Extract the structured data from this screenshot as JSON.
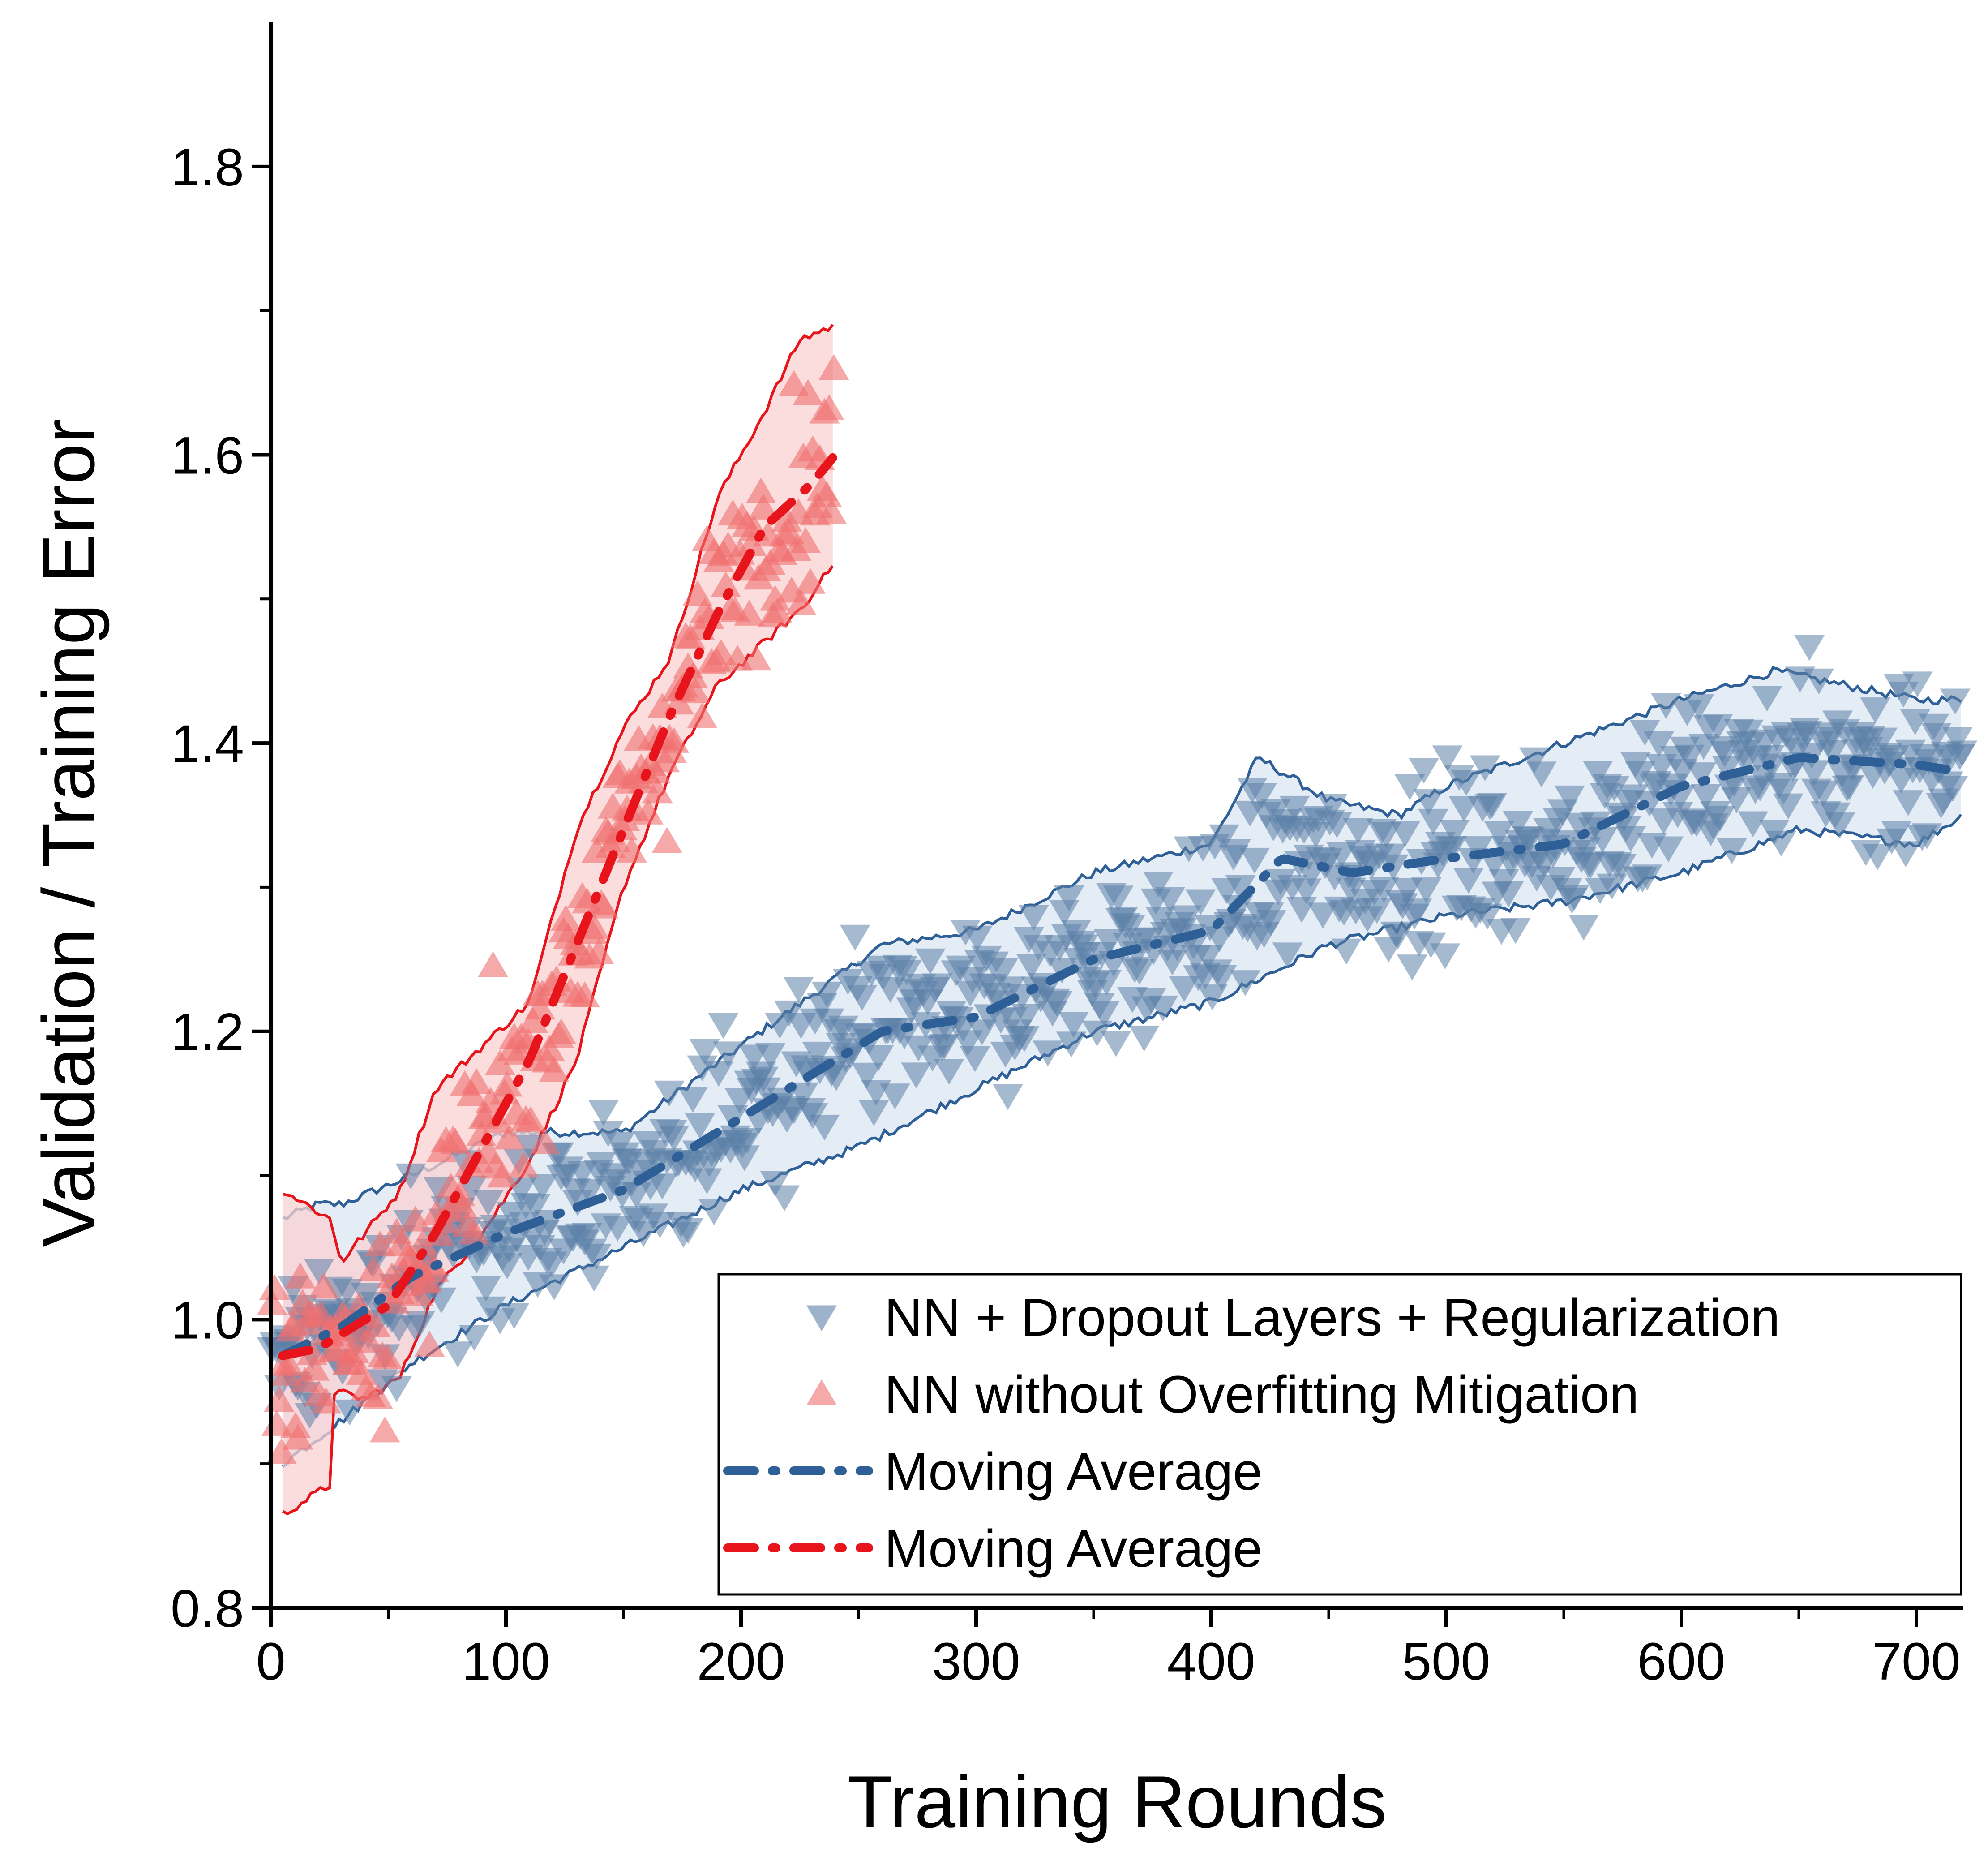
{
  "chart_data": {
    "type": "scatter",
    "xlabel": "Training Rounds",
    "ylabel": "Validation / Training Error",
    "xlim": [
      0,
      720
    ],
    "ylim": [
      0.8,
      1.9
    ],
    "xticks": [
      0,
      100,
      200,
      300,
      400,
      500,
      600,
      700
    ],
    "xtick_labels": [
      "0",
      "100",
      "200",
      "300",
      "400",
      "500",
      "600",
      "700"
    ],
    "yticks": [
      0.8,
      1.0,
      1.2,
      1.4,
      1.6,
      1.8
    ],
    "ytick_labels": [
      "0.8",
      "1.0",
      "1.2",
      "1.4",
      "1.6",
      "1.8"
    ],
    "legend": {
      "position": "lower-right",
      "entries": [
        {
          "label": "NN + Dropout Layers + Regularization",
          "marker": "triangle-down",
          "color": "#5b7fa8"
        },
        {
          "label": "NN without Overfitting Mitigation",
          "marker": "triangle-up",
          "color": "#f07070"
        },
        {
          "label": "Moving Average",
          "style": "dash-dot",
          "color": "#2f5f97"
        },
        {
          "label": "Moving Average",
          "style": "dash-dot",
          "color": "#e8141b"
        }
      ]
    },
    "series": [
      {
        "name": "NN + Dropout Layers + Regularization",
        "marker": "triangle-down",
        "color": "#5b7fa8",
        "x_range": [
          0,
          720
        ],
        "n_points": 720,
        "spread": 0.042,
        "moving_average": {
          "x": [
            5,
            30,
            60,
            100,
            150,
            200,
            260,
            300,
            350,
            400,
            430,
            460,
            500,
            550,
            600,
            650,
            700,
            720
          ],
          "y": [
            0.975,
            0.995,
            1.03,
            1.06,
            1.09,
            1.14,
            1.2,
            1.21,
            1.25,
            1.27,
            1.32,
            1.31,
            1.32,
            1.33,
            1.37,
            1.39,
            1.385,
            1.38
          ]
        },
        "band_upper": {
          "x": [
            5,
            20,
            30,
            60,
            100,
            150,
            200,
            260,
            300,
            350,
            400,
            420,
            450,
            480,
            500,
            550,
            600,
            640,
            700,
            720
          ],
          "y": [
            1.07,
            1.08,
            1.08,
            1.1,
            1.13,
            1.13,
            1.19,
            1.26,
            1.27,
            1.31,
            1.33,
            1.39,
            1.36,
            1.35,
            1.37,
            1.4,
            1.43,
            1.45,
            1.43,
            1.43
          ]
        },
        "band_lower": {
          "x": [
            5,
            30,
            60,
            100,
            150,
            200,
            250,
            300,
            350,
            400,
            450,
            500,
            550,
            600,
            650,
            700,
            720
          ],
          "y": [
            0.9,
            0.93,
            0.97,
            1.01,
            1.05,
            1.09,
            1.12,
            1.16,
            1.2,
            1.22,
            1.26,
            1.28,
            1.29,
            1.31,
            1.34,
            1.33,
            1.35
          ]
        }
      },
      {
        "name": "NN without Overfitting Mitigation",
        "marker": "triangle-up",
        "color": "#f07070",
        "x_range": [
          0,
          240
        ],
        "n_points": 240,
        "spread": 0.045,
        "moving_average": {
          "x": [
            5,
            20,
            30,
            50,
            70,
            90,
            110,
            130,
            150,
            170,
            190,
            210,
            230,
            240
          ],
          "y": [
            0.975,
            0.98,
            0.99,
            1.01,
            1.06,
            1.12,
            1.18,
            1.26,
            1.34,
            1.42,
            1.49,
            1.55,
            1.58,
            1.6
          ]
        },
        "band_upper": {
          "x": [
            5,
            25,
            30,
            40,
            55,
            70,
            90,
            110,
            130,
            150,
            170,
            190,
            210,
            225,
            240
          ],
          "y": [
            1.09,
            1.07,
            1.04,
            1.06,
            1.09,
            1.16,
            1.19,
            1.22,
            1.34,
            1.41,
            1.46,
            1.57,
            1.63,
            1.68,
            1.69
          ]
        },
        "band_lower": {
          "x": [
            5,
            25,
            27,
            40,
            55,
            70,
            90,
            110,
            130,
            150,
            170,
            190,
            210,
            230,
            235,
            240
          ],
          "y": [
            0.865,
            0.885,
            0.95,
            0.945,
            0.96,
            1.02,
            1.06,
            1.11,
            1.18,
            1.3,
            1.38,
            1.44,
            1.47,
            1.5,
            1.52,
            1.52
          ]
        }
      }
    ]
  }
}
